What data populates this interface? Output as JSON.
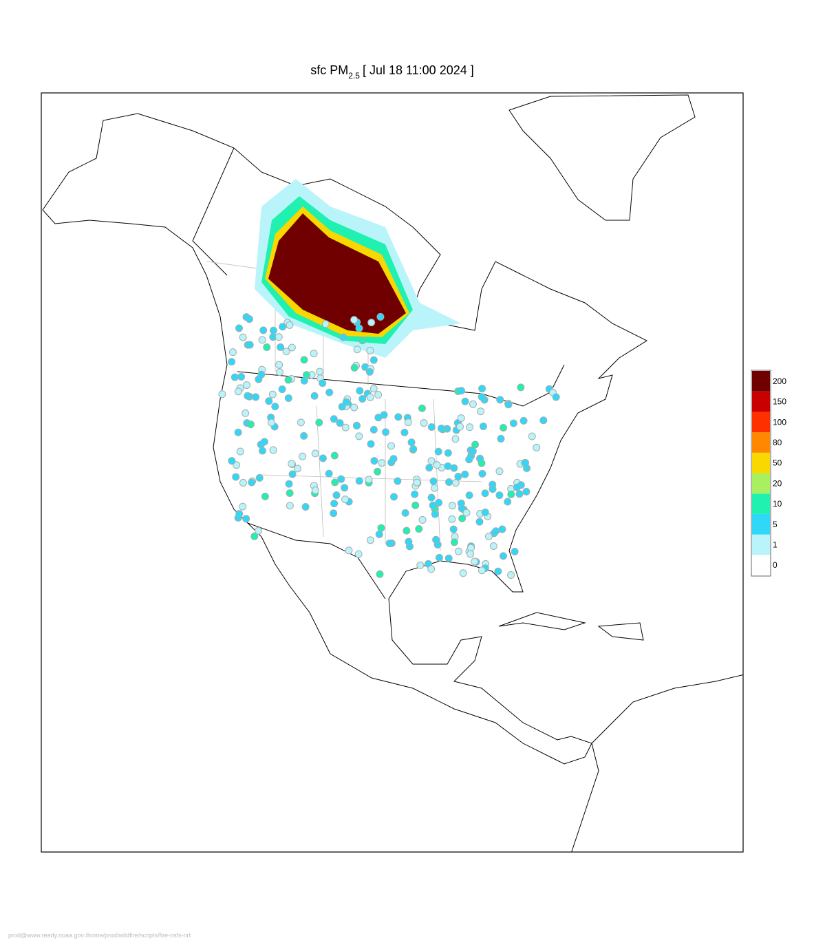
{
  "title": {
    "main": "sfc PM",
    "sub": "2.5",
    "time": "[ Jul 18 11:00 2024 ]"
  },
  "legend": {
    "levels": [
      0,
      1,
      5,
      10,
      20,
      50,
      80,
      100,
      150,
      200
    ],
    "colors": [
      "#ffffff",
      "#b8f4fa",
      "#30d8f8",
      "#20f0b0",
      "#a8f060",
      "#f8d800",
      "#ff8800",
      "#ff3000",
      "#c80000",
      "#700000"
    ]
  },
  "footer": "prod@www.ready.noaa.gov:/home/prod/wildfire/scripts/fire-nsfs-nrt"
}
